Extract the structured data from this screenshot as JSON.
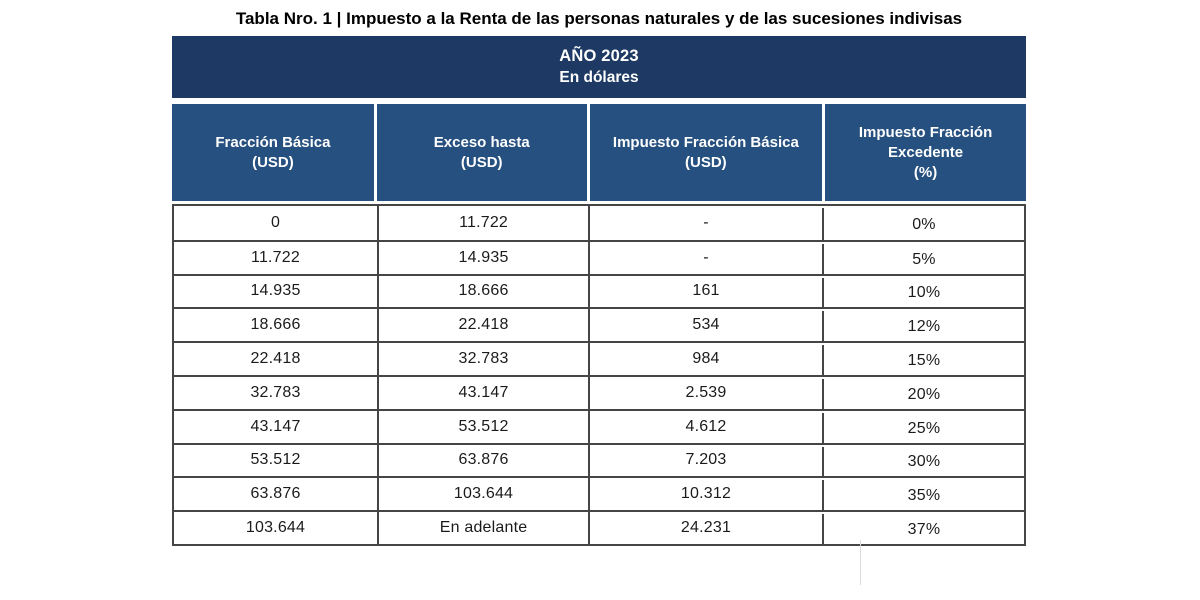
{
  "page": {
    "title": "Tabla Nro. 1 | Impuesto a la Renta de las personas naturales y de las sucesiones indivisas"
  },
  "banner": {
    "line1": "AÑO 2023",
    "line2": "En dólares"
  },
  "table": {
    "columns": [
      "Fracción Básica\n(USD)",
      "Exceso hasta\n(USD)",
      "Impuesto Fracción Básica\n(USD)",
      "Impuesto Fracción\nExcedente\n(%)"
    ],
    "rows": [
      [
        "0",
        "11.722",
        "-",
        "0%"
      ],
      [
        "11.722",
        "14.935",
        "-",
        "5%"
      ],
      [
        "14.935",
        "18.666",
        "161",
        "10%"
      ],
      [
        "18.666",
        "22.418",
        "534",
        "12%"
      ],
      [
        "22.418",
        "32.783",
        "984",
        "15%"
      ],
      [
        "32.783",
        "43.147",
        "2.539",
        "20%"
      ],
      [
        "43.147",
        "53.512",
        "4.612",
        "25%"
      ],
      [
        "53.512",
        "63.876",
        "7.203",
        "30%"
      ],
      [
        "63.876",
        "103.644",
        "10.312",
        "35%"
      ],
      [
        "103.644",
        "En adelante",
        "24.231",
        "37%"
      ]
    ]
  },
  "colors": {
    "banner_bg": "#1e3a64",
    "header_bg": "#26507f",
    "border": "#454545",
    "header_text": "#ffffff",
    "body_text": "#1b1b1b"
  }
}
